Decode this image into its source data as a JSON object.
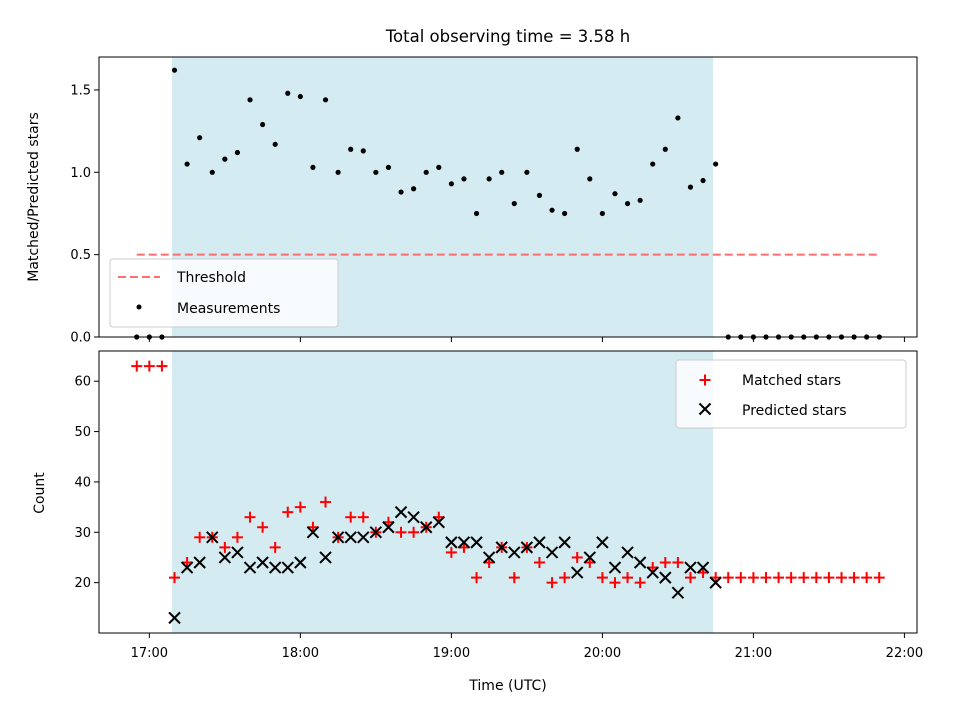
{
  "chart_data": [
    {
      "type": "scatter",
      "title": "Total observing time = 3.58 h",
      "xlabel": "",
      "ylabel": "Matched/Predicted stars",
      "xlim": [
        "16:40",
        "22:05"
      ],
      "ylim": [
        0,
        1.7
      ],
      "yticks": [
        0.0,
        0.5,
        1.0,
        1.5
      ],
      "ytick_labels": [
        "0.0",
        "0.5",
        "1.0",
        "1.5"
      ],
      "shaded_region": {
        "x": [
          "17:09",
          "20:44"
        ],
        "color": "#add8e6"
      },
      "legend": {
        "placement": "lower left"
      },
      "series": [
        {
          "name": "Threshold",
          "style": "dashed-line",
          "color": "#ff6f6f",
          "x": [
            "16:55",
            "21:50"
          ],
          "y": [
            0.5,
            0.5
          ]
        },
        {
          "name": "Measurements",
          "style": "dot",
          "color": "#000000",
          "points": [
            [
              "16:55",
              0.0
            ],
            [
              "17:00",
              0.0
            ],
            [
              "17:05",
              0.0
            ],
            [
              "17:10",
              1.62
            ],
            [
              "17:15",
              1.05
            ],
            [
              "17:20",
              1.21
            ],
            [
              "17:25",
              1.0
            ],
            [
              "17:30",
              1.08
            ],
            [
              "17:35",
              1.12
            ],
            [
              "17:40",
              1.44
            ],
            [
              "17:45",
              1.29
            ],
            [
              "17:50",
              1.17
            ],
            [
              "17:55",
              1.48
            ],
            [
              "18:00",
              1.46
            ],
            [
              "18:05",
              1.03
            ],
            [
              "18:10",
              1.44
            ],
            [
              "18:15",
              1.0
            ],
            [
              "18:20",
              1.14
            ],
            [
              "18:25",
              1.13
            ],
            [
              "18:30",
              1.0
            ],
            [
              "18:35",
              1.03
            ],
            [
              "18:40",
              0.88
            ],
            [
              "18:45",
              0.9
            ],
            [
              "18:50",
              1.0
            ],
            [
              "18:55",
              1.03
            ],
            [
              "19:00",
              0.93
            ],
            [
              "19:05",
              0.96
            ],
            [
              "19:10",
              0.75
            ],
            [
              "19:15",
              0.96
            ],
            [
              "19:20",
              1.0
            ],
            [
              "19:25",
              0.81
            ],
            [
              "19:30",
              1.0
            ],
            [
              "19:35",
              0.86
            ],
            [
              "19:40",
              0.77
            ],
            [
              "19:45",
              0.75
            ],
            [
              "19:50",
              1.14
            ],
            [
              "19:55",
              0.96
            ],
            [
              "20:00",
              0.75
            ],
            [
              "20:05",
              0.87
            ],
            [
              "20:10",
              0.81
            ],
            [
              "20:15",
              0.83
            ],
            [
              "20:20",
              1.05
            ],
            [
              "20:25",
              1.14
            ],
            [
              "20:30",
              1.33
            ],
            [
              "20:35",
              0.91
            ],
            [
              "20:40",
              0.95
            ],
            [
              "20:45",
              1.05
            ],
            [
              "20:50",
              0.0
            ],
            [
              "20:55",
              0.0
            ],
            [
              "21:00",
              0.0
            ],
            [
              "21:05",
              0.0
            ],
            [
              "21:10",
              0.0
            ],
            [
              "21:15",
              0.0
            ],
            [
              "21:20",
              0.0
            ],
            [
              "21:25",
              0.0
            ],
            [
              "21:30",
              0.0
            ],
            [
              "21:35",
              0.0
            ],
            [
              "21:40",
              0.0
            ],
            [
              "21:45",
              0.0
            ],
            [
              "21:50",
              0.0
            ]
          ]
        }
      ]
    },
    {
      "type": "scatter",
      "title": "",
      "xlabel": "Time (UTC)",
      "ylabel": "Count",
      "xlim": [
        "16:40",
        "22:05"
      ],
      "ylim": [
        10,
        66
      ],
      "yticks": [
        20,
        30,
        40,
        50,
        60
      ],
      "ytick_labels": [
        "20",
        "30",
        "40",
        "50",
        "60"
      ],
      "xticks": [
        "17:00",
        "18:00",
        "19:00",
        "20:00",
        "21:00",
        "22:00"
      ],
      "xtick_labels": [
        "17:00",
        "18:00",
        "19:00",
        "20:00",
        "21:00",
        "22:00"
      ],
      "shaded_region": {
        "x": [
          "17:09",
          "20:44"
        ],
        "color": "#add8e6"
      },
      "legend": {
        "placement": "upper right"
      },
      "series": [
        {
          "name": "Matched stars",
          "style": "plus",
          "color": "#ff0000",
          "points": [
            [
              "16:55",
              63
            ],
            [
              "17:00",
              63
            ],
            [
              "17:05",
              63
            ],
            [
              "17:10",
              21
            ],
            [
              "17:15",
              24
            ],
            [
              "17:20",
              29
            ],
            [
              "17:25",
              29
            ],
            [
              "17:30",
              27
            ],
            [
              "17:35",
              29
            ],
            [
              "17:40",
              33
            ],
            [
              "17:45",
              31
            ],
            [
              "17:50",
              27
            ],
            [
              "17:55",
              34
            ],
            [
              "18:00",
              35
            ],
            [
              "18:05",
              31
            ],
            [
              "18:10",
              36
            ],
            [
              "18:15",
              29
            ],
            [
              "18:20",
              33
            ],
            [
              "18:25",
              33
            ],
            [
              "18:30",
              30
            ],
            [
              "18:35",
              32
            ],
            [
              "18:40",
              30
            ],
            [
              "18:45",
              30
            ],
            [
              "18:50",
              31
            ],
            [
              "18:55",
              33
            ],
            [
              "19:00",
              26
            ],
            [
              "19:05",
              27
            ],
            [
              "19:10",
              21
            ],
            [
              "19:15",
              24
            ],
            [
              "19:20",
              27
            ],
            [
              "19:25",
              21
            ],
            [
              "19:30",
              27
            ],
            [
              "19:35",
              24
            ],
            [
              "19:40",
              20
            ],
            [
              "19:45",
              21
            ],
            [
              "19:50",
              25
            ],
            [
              "19:55",
              24
            ],
            [
              "20:00",
              21
            ],
            [
              "20:05",
              20
            ],
            [
              "20:10",
              21
            ],
            [
              "20:15",
              20
            ],
            [
              "20:20",
              23
            ],
            [
              "20:25",
              24
            ],
            [
              "20:30",
              24
            ],
            [
              "20:35",
              21
            ],
            [
              "20:40",
              22
            ],
            [
              "20:45",
              21
            ],
            [
              "20:50",
              21
            ],
            [
              "20:55",
              21
            ],
            [
              "21:00",
              21
            ],
            [
              "21:05",
              21
            ],
            [
              "21:10",
              21
            ],
            [
              "21:15",
              21
            ],
            [
              "21:20",
              21
            ],
            [
              "21:25",
              21
            ],
            [
              "21:30",
              21
            ],
            [
              "21:35",
              21
            ],
            [
              "21:40",
              21
            ],
            [
              "21:45",
              21
            ],
            [
              "21:50",
              21
            ]
          ]
        },
        {
          "name": "Predicted stars",
          "style": "x",
          "color": "#000000",
          "points": [
            [
              "17:10",
              13
            ],
            [
              "17:15",
              23
            ],
            [
              "17:20",
              24
            ],
            [
              "17:25",
              29
            ],
            [
              "17:30",
              25
            ],
            [
              "17:35",
              26
            ],
            [
              "17:40",
              23
            ],
            [
              "17:45",
              24
            ],
            [
              "17:50",
              23
            ],
            [
              "17:55",
              23
            ],
            [
              "18:00",
              24
            ],
            [
              "18:05",
              30
            ],
            [
              "18:10",
              25
            ],
            [
              "18:15",
              29
            ],
            [
              "18:20",
              29
            ],
            [
              "18:25",
              29
            ],
            [
              "18:30",
              30
            ],
            [
              "18:35",
              31
            ],
            [
              "18:40",
              34
            ],
            [
              "18:45",
              33
            ],
            [
              "18:50",
              31
            ],
            [
              "18:55",
              32
            ],
            [
              "19:00",
              28
            ],
            [
              "19:05",
              28
            ],
            [
              "19:10",
              28
            ],
            [
              "19:15",
              25
            ],
            [
              "19:20",
              27
            ],
            [
              "19:25",
              26
            ],
            [
              "19:30",
              27
            ],
            [
              "19:35",
              28
            ],
            [
              "19:40",
              26
            ],
            [
              "19:45",
              28
            ],
            [
              "19:50",
              22
            ],
            [
              "19:55",
              25
            ],
            [
              "20:00",
              28
            ],
            [
              "20:05",
              23
            ],
            [
              "20:10",
              26
            ],
            [
              "20:15",
              24
            ],
            [
              "20:20",
              22
            ],
            [
              "20:25",
              21
            ],
            [
              "20:30",
              18
            ],
            [
              "20:35",
              23
            ],
            [
              "20:40",
              23
            ],
            [
              "20:45",
              20
            ]
          ]
        }
      ]
    }
  ]
}
